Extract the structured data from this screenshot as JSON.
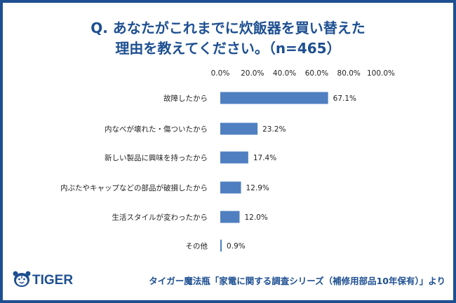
{
  "title_lines": [
    "Q. あなたがこれまでに炊飯器を買い替えた",
    "理由を教えてください。（n=465）"
  ],
  "brand": {
    "logo_text": "TIGER",
    "color": "#1d4f91"
  },
  "footer_caption": "タイガー魔法瓶「家電に関する調査シリーズ（補修用部品10年保有）」より",
  "chart_data": {
    "type": "bar",
    "orientation": "horizontal",
    "xlim": [
      0,
      100
    ],
    "tick_labels": [
      "0.0%",
      "20.0%",
      "40.0%",
      "60.0%",
      "80.0%",
      "100.0%"
    ],
    "ticks": [
      0,
      20,
      40,
      60,
      80,
      100
    ],
    "grid": false,
    "bar_color": "#4f7fc0",
    "categories": [
      "故障したから",
      "内なべが壊れた・傷ついたから",
      "新しい製品に興味を持ったから",
      "内ぶたやキャップなどの部品が破損したから",
      "生活スタイルが変わったから",
      "その他"
    ],
    "values": [
      67.1,
      23.2,
      17.4,
      12.9,
      12.0,
      0.9
    ],
    "value_labels": [
      "67.1%",
      "23.2%",
      "17.4%",
      "12.9%",
      "12.0%",
      "0.9%"
    ]
  }
}
